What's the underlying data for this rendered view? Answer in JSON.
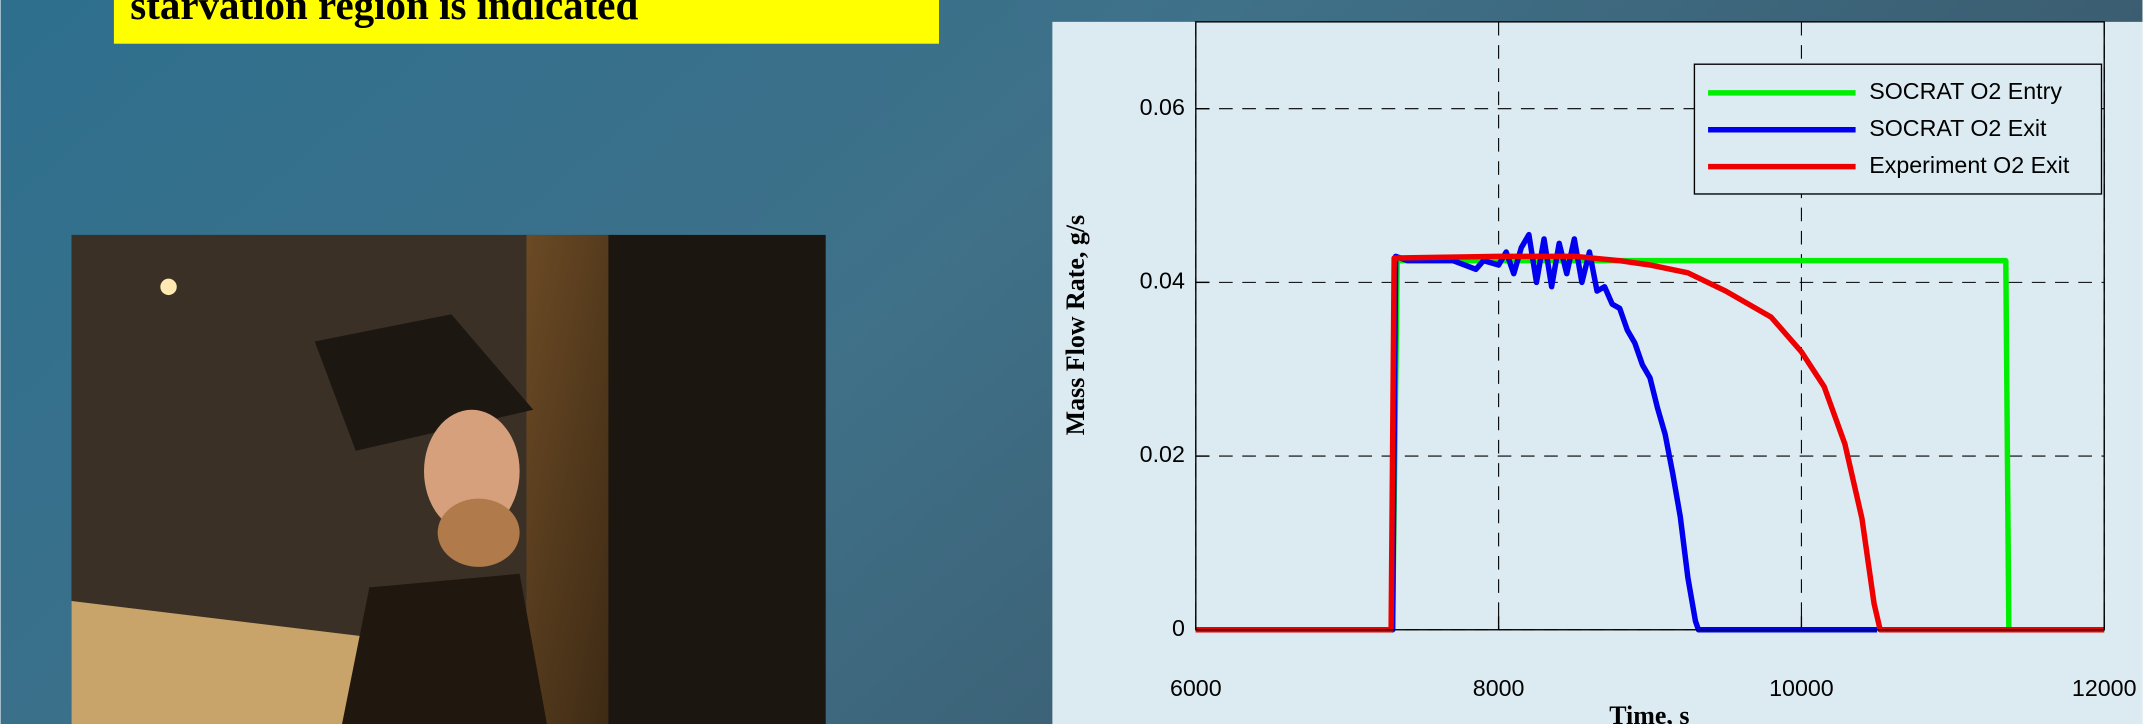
{
  "slide": {
    "heading": "starvation region is indicated"
  },
  "chart_data": {
    "type": "line",
    "xlabel": "Time, s",
    "ylabel": "Mass Flow Rate, g/s",
    "xlim": [
      6000,
      12000
    ],
    "ylim": [
      0,
      0.07
    ],
    "xticks": [
      6000,
      8000,
      10000,
      12000
    ],
    "yticks": [
      0,
      0.02,
      0.04,
      0.06
    ],
    "grid": true,
    "legend": "upper right",
    "series": [
      {
        "name": "SOCRAT O2 Entry",
        "color": "#00ee00",
        "x": [
          6000,
          7300,
          7330,
          11350,
          11370,
          12000
        ],
        "values": [
          0,
          0,
          0.0425,
          0.0425,
          0,
          0
        ]
      },
      {
        "name": "SOCRAT O2 Exit",
        "color": "#0000ee",
        "x": [
          6000,
          7300,
          7320,
          7400,
          7700,
          7850,
          7900,
          8000,
          8050,
          8100,
          8150,
          8200,
          8250,
          8300,
          8350,
          8400,
          8450,
          8500,
          8550,
          8600,
          8650,
          8700,
          8750,
          8800,
          8850,
          8900,
          8950,
          9000,
          9050,
          9100,
          9150,
          9200,
          9250,
          9300,
          9320,
          10500
        ],
        "values": [
          0,
          0,
          0.043,
          0.0425,
          0.0425,
          0.0415,
          0.0425,
          0.042,
          0.0435,
          0.041,
          0.044,
          0.0455,
          0.04,
          0.045,
          0.0395,
          0.0445,
          0.041,
          0.045,
          0.04,
          0.0435,
          0.039,
          0.0395,
          0.0375,
          0.037,
          0.0345,
          0.033,
          0.0305,
          0.029,
          0.0255,
          0.0225,
          0.018,
          0.013,
          0.006,
          0.001,
          0,
          0
        ]
      },
      {
        "name": "Experiment O2 Exit",
        "color": "#ee0000",
        "x": [
          6000,
          7290,
          7310,
          8000,
          8500,
          8800,
          9000,
          9250,
          9500,
          9800,
          10000,
          10150,
          10287,
          10400,
          10480,
          10520,
          12000
        ],
        "values": [
          0,
          0,
          0.0428,
          0.043,
          0.043,
          0.0425,
          0.042,
          0.0411,
          0.039,
          0.036,
          0.032,
          0.028,
          0.0214,
          0.0128,
          0.003,
          0,
          0
        ]
      }
    ]
  }
}
